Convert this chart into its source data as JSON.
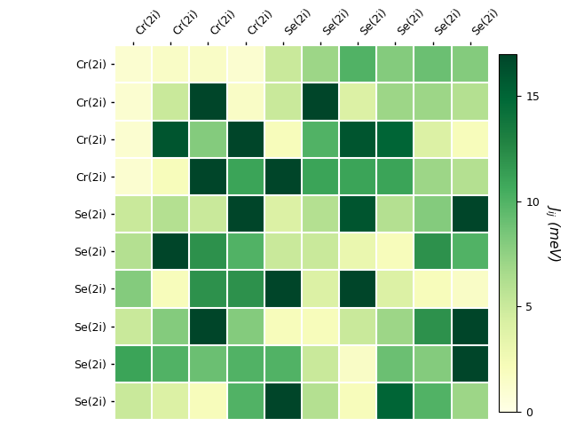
{
  "matrix": [
    [
      1.0,
      1.5,
      1.5,
      1.0,
      5.0,
      7.0,
      10.0,
      8.0,
      9.0,
      8.0
    ],
    [
      1.0,
      5.0,
      17.0,
      1.5,
      5.0,
      17.0,
      4.0,
      7.0,
      7.0,
      6.0
    ],
    [
      1.0,
      16.0,
      8.0,
      17.0,
      2.0,
      10.0,
      16.0,
      15.0,
      4.0,
      2.0
    ],
    [
      1.0,
      2.0,
      17.0,
      11.0,
      17.0,
      11.0,
      11.0,
      11.0,
      7.0,
      6.0
    ],
    [
      5.0,
      6.0,
      5.0,
      17.0,
      4.0,
      6.0,
      16.0,
      6.0,
      8.0,
      17.0
    ],
    [
      6.0,
      17.0,
      12.0,
      10.0,
      5.0,
      5.0,
      3.0,
      2.0,
      12.0,
      10.0
    ],
    [
      8.0,
      2.0,
      12.0,
      12.0,
      17.0,
      4.0,
      17.0,
      4.0,
      2.0,
      1.5
    ],
    [
      5.0,
      8.0,
      17.0,
      8.0,
      2.0,
      2.0,
      5.0,
      7.0,
      12.0,
      17.0
    ],
    [
      11.0,
      10.0,
      9.0,
      10.0,
      10.0,
      5.0,
      1.5,
      9.0,
      8.0,
      17.0
    ],
    [
      5.0,
      4.0,
      2.0,
      10.0,
      17.0,
      6.0,
      2.0,
      15.0,
      10.0,
      7.0
    ]
  ],
  "row_labels": [
    "Cr(2i)",
    "Cr(2i)",
    "Cr(2i)",
    "Cr(2i)",
    "Se(2i)",
    "Se(2i)",
    "Se(2i)",
    "Se(2i)",
    "Se(2i)",
    "Se(2i)"
  ],
  "col_labels": [
    "Cr(2i)",
    "Cr(2i)",
    "Cr(2i)",
    "Cr(2i)",
    "Se(2i)",
    "Se(2i)",
    "Se(2i)",
    "Se(2i)",
    "Se(2i)",
    "Se(2i)"
  ],
  "cbar_label": "$J_{ij}$ (meV)",
  "vmin": 0,
  "vmax": 17,
  "cbar_ticks": [
    0,
    5,
    10,
    15
  ],
  "colormap": "YlGn",
  "figsize": [
    6.4,
    4.8
  ],
  "dpi": 100
}
